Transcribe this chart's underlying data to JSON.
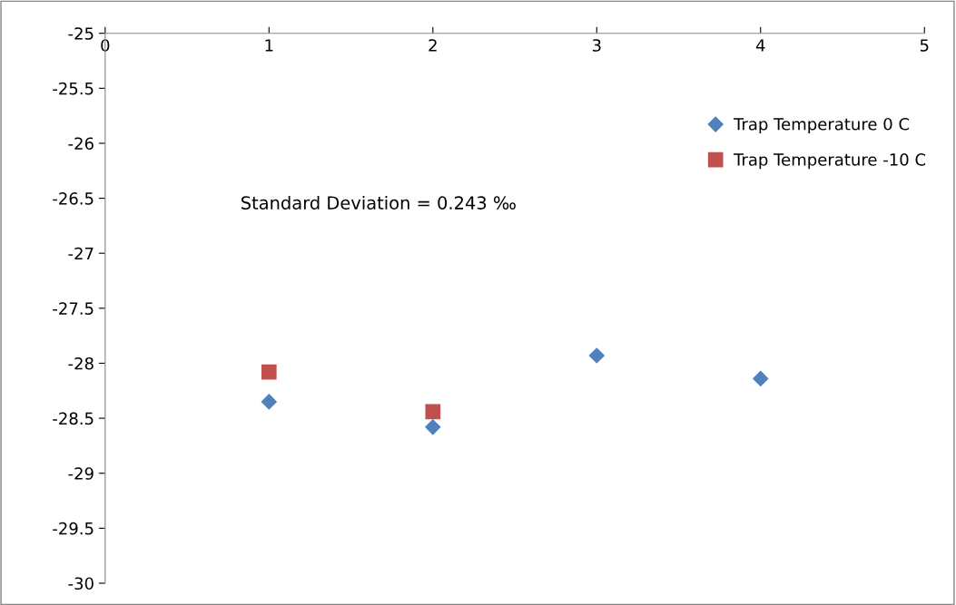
{
  "chart_data": {
    "type": "scatter",
    "series": [
      {
        "name": "Trap Temperature 0 C",
        "color": "#4f81bd",
        "marker": "diamond",
        "x": [
          1,
          2,
          3,
          4
        ],
        "values": [
          -28.35,
          -28.58,
          -27.93,
          -28.14
        ]
      },
      {
        "name": "Trap Temperature -10 C",
        "color": "#c0504d",
        "marker": "square",
        "x": [
          1,
          2
        ],
        "values": [
          -28.08,
          -28.44
        ]
      }
    ],
    "xlim": [
      0,
      5
    ],
    "xticks": [
      0,
      1,
      2,
      3,
      4,
      5
    ],
    "ylim": [
      -30,
      -25
    ],
    "yticks": [
      -30,
      -29.5,
      -29,
      -28.5,
      -28,
      -27.5,
      -27,
      -26.5,
      -26,
      -25.5,
      -25
    ],
    "annotations": [
      "Standard Deviation = 0.243 ‰"
    ],
    "grid": false,
    "legend": "right"
  }
}
